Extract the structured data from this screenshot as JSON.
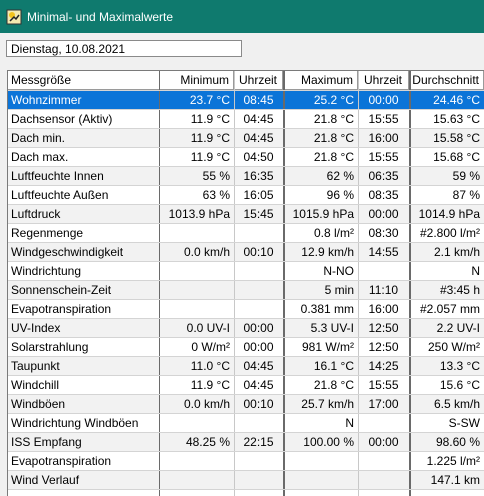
{
  "window": {
    "title": "Minimal- und Maximalwerte",
    "icon": "app-weather-icon"
  },
  "date_field": {
    "value": "Dienstag, 10.08.2021"
  },
  "table": {
    "headers": [
      "Messgröße",
      "Minimum",
      "Uhrzeit",
      "Maximum",
      "Uhrzeit",
      "Durchschnitt"
    ],
    "rows": [
      [
        "Wohnzimmer",
        "23.7 °C",
        "08:45",
        "25.2 °C",
        "00:00",
        "24.46 °C"
      ],
      [
        "Dachsensor (Aktiv)",
        "11.9 °C",
        "04:45",
        "21.8 °C",
        "15:55",
        "15.63 °C"
      ],
      [
        "Dach min.",
        "11.9 °C",
        "04:45",
        "21.8 °C",
        "16:00",
        "15.58 °C"
      ],
      [
        "Dach max.",
        "11.9 °C",
        "04:50",
        "21.8 °C",
        "15:55",
        "15.68 °C"
      ],
      [
        "Luftfeuchte Innen",
        "55 %",
        "16:35",
        "62 %",
        "06:35",
        "59 %"
      ],
      [
        "Luftfeuchte Außen",
        "63 %",
        "16:05",
        "96 %",
        "08:35",
        "87 %"
      ],
      [
        "Luftdruck",
        "1013.9 hPa",
        "15:45",
        "1015.9 hPa",
        "00:00",
        "1014.9 hPa"
      ],
      [
        "Regenmenge",
        "",
        "",
        "0.8 l/m²",
        "08:30",
        "#2.800 l/m²"
      ],
      [
        "Windgeschwindigkeit",
        "0.0 km/h",
        "00:10",
        "12.9 km/h",
        "14:55",
        "2.1 km/h"
      ],
      [
        "Windrichtung",
        "",
        "",
        "N-NO",
        "",
        "N"
      ],
      [
        "Sonnenschein-Zeit",
        "",
        "",
        "5 min",
        "11:10",
        "#3:45 h"
      ],
      [
        "Evapotranspiration",
        "",
        "",
        "0.381 mm",
        "16:00",
        "#2.057 mm"
      ],
      [
        "UV-Index",
        "0.0 UV-I",
        "00:00",
        "5.3 UV-I",
        "12:50",
        "2.2 UV-I"
      ],
      [
        "Solarstrahlung",
        "0 W/m²",
        "00:00",
        "981 W/m²",
        "12:50",
        "250 W/m²"
      ],
      [
        "Taupunkt",
        "11.0 °C",
        "04:45",
        "16.1 °C",
        "14:25",
        "13.3 °C"
      ],
      [
        "Windchill",
        "11.9 °C",
        "04:45",
        "21.8 °C",
        "15:55",
        "15.6 °C"
      ],
      [
        "Windböen",
        "0.0 km/h",
        "00:10",
        "25.7 km/h",
        "17:00",
        "6.5 km/h"
      ],
      [
        "Windrichtung Windböen",
        "",
        "",
        "N",
        "",
        "S-SW"
      ],
      [
        "ISS Empfang",
        "48.25 %",
        "22:15",
        "100.00 %",
        "00:00",
        "98.60 %"
      ],
      [
        "Evapotranspiration",
        "",
        "",
        "",
        "",
        "1.225 l/m²"
      ],
      [
        "Wind Verlauf",
        "",
        "",
        "",
        "",
        "147.1 km"
      ]
    ],
    "selected_row": 0
  },
  "colors": {
    "titlebar": "#0f7a6e",
    "selection": "#0b74d8"
  }
}
